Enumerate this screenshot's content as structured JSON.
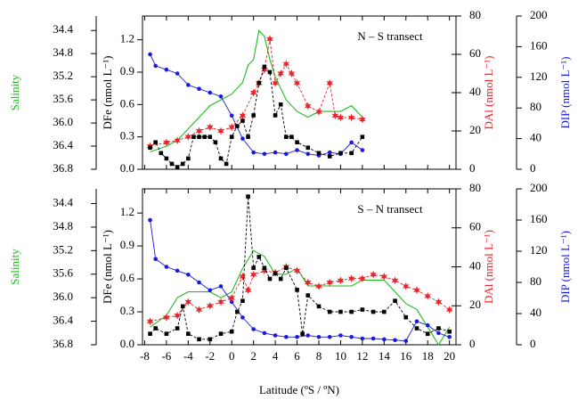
{
  "chart_data": [
    {
      "type": "line",
      "annotation": "N – S transect",
      "xlim": [
        -8.2,
        20.6
      ],
      "ylabel": "DFe (nmol L⁻¹)",
      "ylim": [
        0,
        1.42
      ],
      "yticks": [
        {
          "value": 0,
          "label": "0.0"
        },
        0.3,
        0.6,
        0.9,
        1.2
      ],
      "y2label": "DAl (nmol L⁻¹)",
      "y2lim": [
        0,
        80
      ],
      "y2ticks": [
        0,
        20,
        40,
        60,
        80
      ],
      "y3label": "DIP (nmol L⁻¹)",
      "y3lim": [
        0,
        200
      ],
      "y3ticks": [
        0,
        40,
        80,
        120,
        160,
        200
      ],
      "y4label": "Salinity",
      "y4lim": [
        36.8,
        34.15
      ],
      "y4ticks": [
        34.4,
        34.8,
        35.2,
        35.6,
        {
          "value": 36,
          "label": "36.0"
        },
        36.4,
        36.8
      ],
      "series": [
        {
          "name": "Salinity",
          "color": "#22bb22",
          "axis": "y4",
          "marker": "none",
          "dash": false,
          "x": [
            -7.5,
            -6,
            -5,
            -4,
            -3,
            -2,
            -1,
            0,
            1,
            1.5,
            2,
            2.5,
            3,
            3.5,
            4,
            5,
            6,
            7,
            8,
            9,
            10,
            11,
            12
          ],
          "values": [
            36.5,
            36.4,
            36.3,
            36.1,
            35.9,
            35.7,
            35.6,
            35.5,
            35.3,
            35.0,
            34.9,
            34.4,
            34.5,
            34.9,
            35.2,
            35.6,
            35.8,
            35.9,
            35.8,
            35.8,
            35.8,
            35.7,
            35.9
          ]
        },
        {
          "name": "DIP",
          "color": "#1a1adb",
          "axis": "y3",
          "marker": "circle",
          "dash": false,
          "x": [
            -7.5,
            -7,
            -6,
            -5,
            -4,
            -3,
            -2,
            -1,
            0,
            1,
            2,
            3,
            4,
            5,
            6,
            7,
            8,
            9,
            10,
            11,
            12
          ],
          "values": [
            150,
            135,
            130,
            125,
            110,
            105,
            100,
            95,
            70,
            40,
            22,
            20,
            22,
            20,
            25,
            20,
            18,
            22,
            20,
            35,
            25
          ]
        },
        {
          "name": "DAl",
          "color": "#e8252a",
          "axis": "y2",
          "marker": "star",
          "dash": true,
          "x": [
            -7.5,
            -6,
            -5,
            -4,
            -3,
            -2,
            -1,
            0,
            1,
            2,
            2.5,
            3,
            3.5,
            4,
            4.5,
            5,
            5.5,
            6,
            7,
            8,
            9,
            9.5,
            10,
            11,
            12
          ],
          "values": [
            12,
            14,
            15,
            17,
            20,
            22,
            20,
            22,
            28,
            40,
            45,
            52,
            68,
            45,
            50,
            55,
            50,
            45,
            33,
            30,
            45,
            28,
            27,
            27,
            26
          ]
        },
        {
          "name": "DFe",
          "color": "#000000",
          "axis": "y",
          "marker": "square",
          "dash": true,
          "x": [
            -7.5,
            -7,
            -6.5,
            -6,
            -5.5,
            -5,
            -4.5,
            -4,
            -3.5,
            -3,
            -2.5,
            -2,
            -1.5,
            -1,
            -0.5,
            0,
            0.5,
            1,
            1.5,
            2,
            2.5,
            3,
            3.5,
            4,
            4.5,
            5,
            5.5,
            6,
            7,
            8,
            9,
            10,
            11,
            12
          ],
          "values": [
            0.2,
            0.25,
            0.15,
            0.1,
            0.05,
            0.02,
            0.05,
            0.1,
            0.3,
            0.3,
            0.3,
            0.3,
            0.25,
            0.1,
            0.05,
            0.3,
            0.4,
            0.45,
            0.3,
            0.5,
            0.8,
            0.95,
            0.9,
            0.5,
            0.6,
            0.3,
            0.3,
            0.25,
            0.2,
            0.15,
            0.12,
            0.15,
            0.15,
            0.3
          ]
        }
      ]
    },
    {
      "type": "line",
      "annotation": "S – N transect",
      "xlabel": "Latitude (ºS / ºN)",
      "xlim": [
        -8.2,
        20.6
      ],
      "xticks": [
        -8,
        -6,
        -4,
        -2,
        0,
        2,
        4,
        6,
        8,
        10,
        12,
        14,
        16,
        18,
        20
      ],
      "ylabel": "DFe (nmol L⁻¹)",
      "ylim": [
        0,
        1.42
      ],
      "yticks": [
        {
          "value": 0,
          "label": "0.0"
        },
        0.3,
        0.6,
        0.9,
        1.2
      ],
      "y2label": "DAl (nmol L⁻¹)",
      "y2lim": [
        0,
        80
      ],
      "y2ticks": [
        0,
        20,
        40,
        60,
        80
      ],
      "y3label": "DIP (nmol L⁻¹)",
      "y3lim": [
        0,
        200
      ],
      "y3ticks": [
        0,
        40,
        80,
        120,
        160,
        200
      ],
      "y4label": "Salinity",
      "y4lim": [
        36.8,
        34.15
      ],
      "y4ticks": [
        34.4,
        34.8,
        35.2,
        35.6,
        {
          "value": 36,
          "label": "36.0"
        },
        36.4,
        36.8
      ],
      "series": [
        {
          "name": "Salinity",
          "color": "#22bb22",
          "axis": "y4",
          "marker": "none",
          "dash": false,
          "x": [
            -7.5,
            -6,
            -5,
            -4,
            -3,
            -2,
            -1,
            0,
            1,
            2,
            3,
            4,
            5,
            6,
            7,
            8,
            9,
            10,
            11,
            12,
            13,
            14,
            15,
            16,
            17,
            18,
            19,
            20
          ],
          "values": [
            36.5,
            36.3,
            36.0,
            35.9,
            35.9,
            35.9,
            36.0,
            35.9,
            35.5,
            35.2,
            35.3,
            35.6,
            35.6,
            35.5,
            35.8,
            35.8,
            35.8,
            35.8,
            35.8,
            35.7,
            35.7,
            35.7,
            35.9,
            36.1,
            36.2,
            36.5,
            36.8,
            36.5
          ]
        },
        {
          "name": "DIP",
          "color": "#1a1adb",
          "axis": "y3",
          "marker": "circle",
          "dash": false,
          "x": [
            -7.5,
            -7,
            -6,
            -5,
            -4,
            -3,
            -2,
            -1,
            0,
            1,
            2,
            3,
            4,
            5,
            6,
            7,
            8,
            9,
            10,
            11,
            12,
            13,
            14,
            15,
            16,
            17,
            18,
            19,
            20
          ],
          "values": [
            160,
            110,
            100,
            95,
            90,
            80,
            70,
            75,
            55,
            35,
            20,
            15,
            12,
            10,
            10,
            12,
            10,
            10,
            12,
            10,
            8,
            8,
            7,
            6,
            5,
            30,
            25,
            15,
            10
          ]
        },
        {
          "name": "DAl",
          "color": "#e8252a",
          "axis": "y2",
          "marker": "star",
          "dash": true,
          "x": [
            -7.5,
            -6,
            -5,
            -4,
            -3,
            -2,
            -1,
            0,
            1,
            1.5,
            2,
            3,
            4,
            5,
            6,
            7,
            8,
            9,
            10,
            11,
            12,
            13,
            14,
            15,
            16,
            17,
            18,
            19,
            20
          ],
          "values": [
            12,
            14,
            15,
            22,
            18,
            20,
            22,
            24,
            35,
            28,
            36,
            38,
            37,
            40,
            38,
            32,
            30,
            32,
            33,
            34,
            34,
            36,
            35,
            33,
            30,
            28,
            25,
            22,
            18
          ]
        },
        {
          "name": "DFe",
          "color": "#000000",
          "axis": "y",
          "marker": "square",
          "dash": true,
          "x": [
            -7.5,
            -7,
            -6,
            -5,
            -4.5,
            -4,
            -3,
            -2,
            -1,
            0,
            0.5,
            1,
            1.5,
            2,
            2.5,
            3,
            3.5,
            4,
            4.5,
            5,
            6,
            6.5,
            7,
            8,
            9,
            10,
            11,
            12,
            13,
            14,
            15,
            16,
            17,
            18,
            19,
            20
          ],
          "values": [
            0.1,
            0.15,
            0.1,
            0.15,
            0.35,
            0.1,
            0.05,
            0.05,
            0.1,
            0.12,
            0.3,
            0.4,
            1.35,
            0.7,
            0.8,
            0.7,
            0.6,
            0.65,
            0.6,
            0.7,
            0.5,
            0.1,
            0.45,
            0.35,
            0.3,
            0.3,
            0.3,
            0.32,
            0.3,
            0.3,
            0.4,
            0.25,
            0.15,
            0.1,
            0.15,
            0.12
          ]
        }
      ]
    }
  ]
}
